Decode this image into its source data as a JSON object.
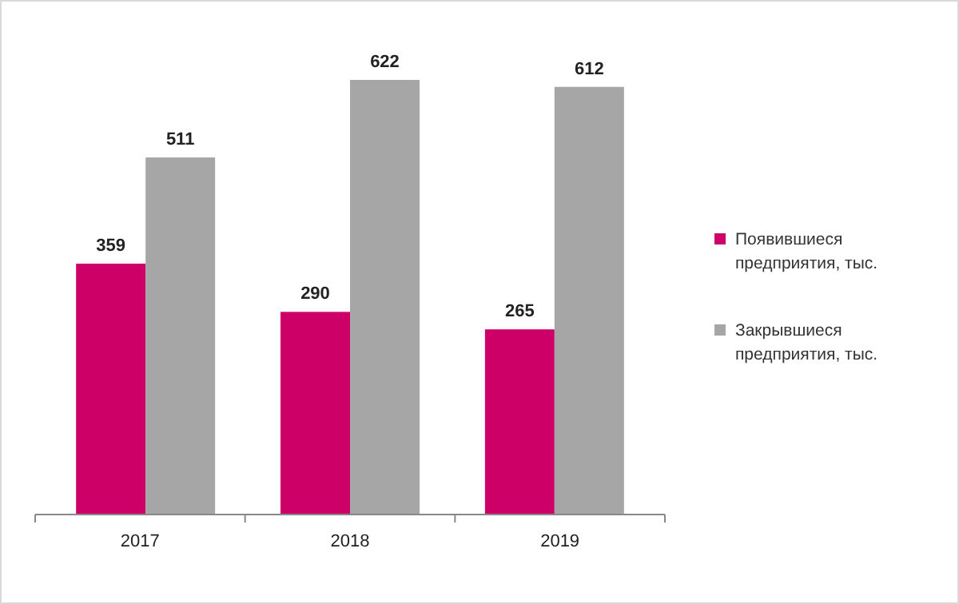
{
  "chart_data": {
    "type": "bar",
    "categories": [
      "2017",
      "2018",
      "2019"
    ],
    "series": [
      {
        "name": "Появившиеся предприятия, тыс.",
        "color": "#cc0066",
        "values": [
          359,
          290,
          265
        ]
      },
      {
        "name": "Закрывшиеся предприятия, тыс.",
        "color": "#a6a6a6",
        "values": [
          511,
          622,
          612
        ]
      }
    ],
    "data_labels": true,
    "legend": "right",
    "grid": false
  }
}
